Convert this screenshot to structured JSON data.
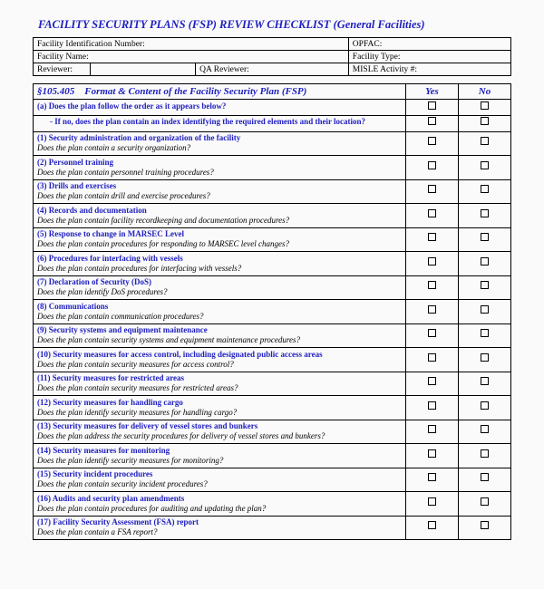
{
  "title": "FACILITY SECURITY PLANS (FSP) REVIEW CHECKLIST (General Facilities)",
  "header": {
    "fin_label": "Facility Identification Number:",
    "opfac_label": "OPFAC:",
    "fname_label": "Facility Name:",
    "ftype_label": "Facility Type:",
    "reviewer_label": "Reviewer:",
    "qa_label": "QA Reviewer:",
    "misle_label": "MISLE Activity #:"
  },
  "section": {
    "code": "§105.405",
    "title": "Format & Content of the Facility Security Plan (FSP)",
    "yes": "Yes",
    "no": "No"
  },
  "rows": [
    {
      "h": "(a)  Does the plan follow the order as it appears below?",
      "q": ""
    },
    {
      "h": "- If no, does the plan contain an index identifying the required elements and their location?",
      "q": "",
      "sub": true
    },
    {
      "h": "(1) Security administration and organization of the facility",
      "q": "Does the plan contain a security organization?"
    },
    {
      "h": "(2) Personnel training",
      "q": "Does the plan contain personnel training procedures?"
    },
    {
      "h": "(3) Drills and exercises",
      "q": "Does the plan contain drill and exercise procedures?"
    },
    {
      "h": "(4) Records and documentation",
      "q": "Does the plan contain facility recordkeeping and documentation procedures?"
    },
    {
      "h": "(5) Response to change in MARSEC Level",
      "q": "Does the plan contain procedures for responding to MARSEC level changes?"
    },
    {
      "h": "(6) Procedures for interfacing with vessels",
      "q": "Does the plan contain procedures for interfacing with vessels?"
    },
    {
      "h": "(7) Declaration of Security (DoS)",
      "q": "Does the plan identify DoS  procedures?"
    },
    {
      "h": "(8) Communications",
      "q": "Does the plan contain communication procedures?"
    },
    {
      "h": "(9) Security systems and equipment maintenance",
      "q": "Does the plan contain security systems and equipment maintenance procedures?"
    },
    {
      "h": "(10) Security measures for access control, including designated public access areas",
      "q": "Does the plan contain security measures for access control?"
    },
    {
      "h": "(11) Security measures for restricted areas",
      "q": "Does the plan contain security measures for restricted areas?"
    },
    {
      "h": "(12) Security measures for handling cargo",
      "q": "Does the plan identify security measures for handling cargo?"
    },
    {
      "h": "(13) Security measures for delivery of vessel stores and bunkers",
      "q": "Does the plan address the security procedures for delivery of vessel stores and bunkers?"
    },
    {
      "h": "(14) Security measures for monitoring",
      "q": "Does the plan identify security measures for monitoring?"
    },
    {
      "h": "(15) Security incident procedures",
      "q": "Does the plan contain security incident procedures?"
    },
    {
      "h": "(16) Audits and security plan amendments",
      "q": "Does the plan contain procedures for auditing and updating the plan?"
    },
    {
      "h": "(17) Facility Security Assessment (FSA) report",
      "q": "Does the plan contain a FSA report?"
    }
  ],
  "colors": {
    "blue": "#2020c0",
    "border": "#000000",
    "bg": "#fafafa"
  }
}
